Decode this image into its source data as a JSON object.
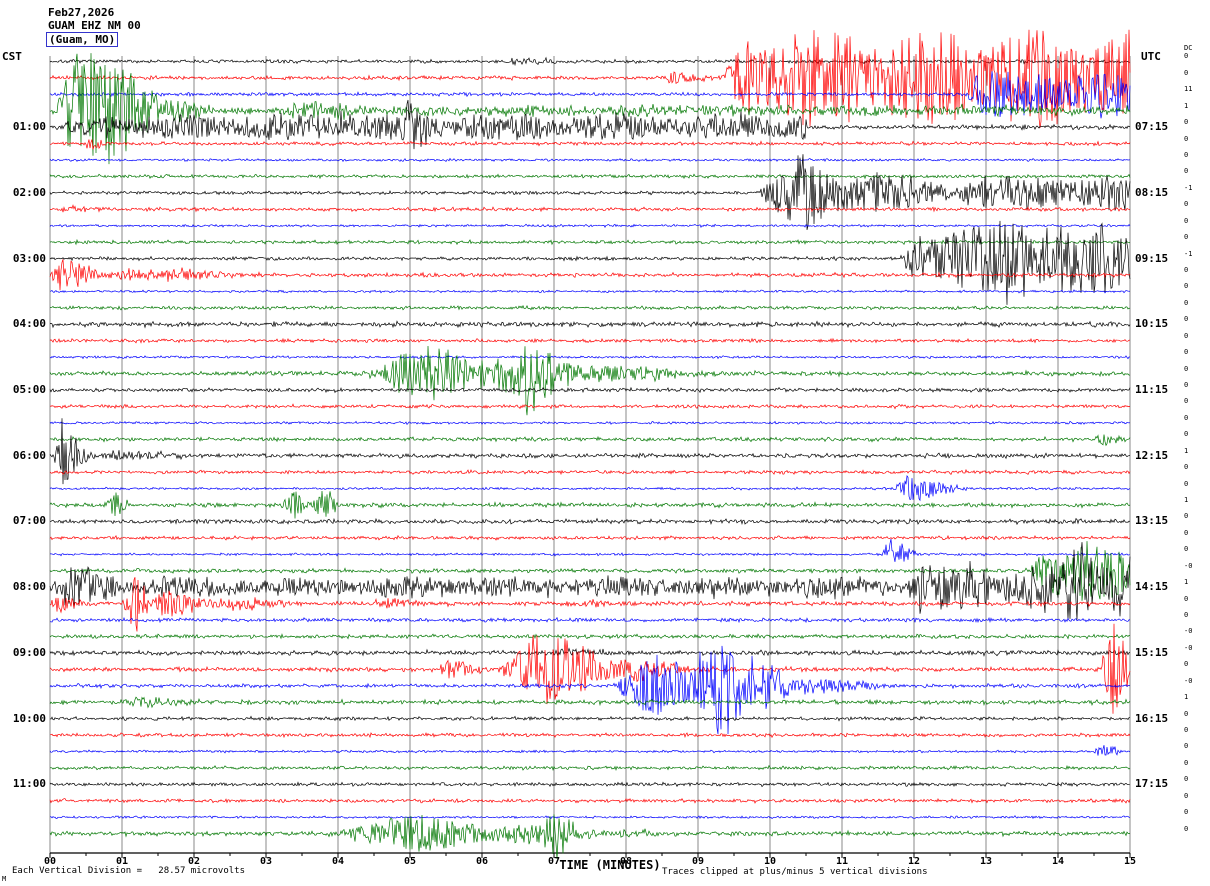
{
  "header": {
    "date": "Feb27,2026",
    "station": "GUAM EHZ NM 00",
    "location": "(Guam, MO)"
  },
  "axes": {
    "left_label": "CST",
    "right_label": "UTC",
    "dc_label": "DC",
    "x_axis_label": "TIME (MINUTES)",
    "left_times": [
      "01:00",
      "02:00",
      "03:00",
      "04:00",
      "05:00",
      "06:00",
      "07:00",
      "08:00",
      "09:00",
      "10:00",
      "11:00"
    ],
    "right_times": [
      "07:15",
      "08:15",
      "09:15",
      "10:15",
      "11:15",
      "12:15",
      "13:15",
      "14:15",
      "15:15",
      "16:15",
      "17:15"
    ],
    "x_ticks": [
      "00",
      "01",
      "02",
      "03",
      "04",
      "05",
      "06",
      "07",
      "08",
      "09",
      "10",
      "11",
      "12",
      "13",
      "14",
      "15"
    ]
  },
  "footer": {
    "scale_note": "Each Vertical Division =   28.57 microvolts",
    "clip_note": "Traces clipped at plus/minus 5 vertical divisions",
    "corner_mark": "M"
  },
  "colors": {
    "k": "#000000",
    "r": "#ff0000",
    "b": "#0000ff",
    "g": "#007700",
    "grid": "#8a8a8a",
    "axis": "#000000",
    "box": "#3333cc"
  },
  "chart_data": {
    "type": "line",
    "title": "Helicorder seismogram GUAM EHZ NM 00 (Guam, MO) Feb27,2026",
    "xlabel": "TIME (MINUTES)",
    "x_range": [
      0,
      15
    ],
    "minutes_per_line": 15,
    "lines_per_hour": 4,
    "color_cycle": [
      "black",
      "red",
      "blue",
      "green"
    ],
    "shape_codes": {
      "0": "burst",
      "1": "steady",
      "2": "spike"
    },
    "amp_units": "pixels (trace deflection, clipped at plus/minus 5 vertical divisions)",
    "traces": [
      {
        "t": "00:00",
        "c": "k",
        "dc": "0",
        "base": 0.8,
        "ev": [
          [
            6.3,
            7.6,
            3,
            0
          ]
        ]
      },
      {
        "t": "00:15",
        "c": "r",
        "dc": "0",
        "base": 0.9,
        "ev": [
          [
            8.5,
            9.3,
            6,
            0
          ],
          [
            9.3,
            15,
            34,
            1
          ]
        ]
      },
      {
        "t": "00:30",
        "c": "b",
        "dc": "11",
        "base": 0.8,
        "ev": [
          [
            12.7,
            15,
            16,
            1
          ]
        ]
      },
      {
        "t": "00:45",
        "c": "g",
        "dc": "1",
        "base": 1.4,
        "ev": [
          [
            0,
            2.4,
            50,
            0
          ],
          [
            2.4,
            15,
            3,
            1
          ],
          [
            3.2,
            4.6,
            7,
            0
          ]
        ]
      },
      {
        "t": "01:00",
        "c": "k",
        "dc": "0",
        "base": 1.0,
        "ev": [
          [
            0,
            10.5,
            9,
            1
          ],
          [
            3.9,
            4.4,
            16,
            0
          ],
          [
            4.9,
            5.4,
            14,
            0
          ],
          [
            9.5,
            10.5,
            4,
            0
          ]
        ]
      },
      {
        "t": "01:15",
        "c": "r",
        "dc": "0",
        "base": 0.8,
        "ev": [
          [
            0.45,
            0.75,
            9,
            2
          ]
        ]
      },
      {
        "t": "01:30",
        "c": "b",
        "dc": "0",
        "base": 0.55,
        "ev": []
      },
      {
        "t": "01:45",
        "c": "g",
        "dc": "0",
        "base": 0.8,
        "ev": []
      },
      {
        "t": "02:00",
        "c": "k",
        "dc": "-1",
        "base": 0.8,
        "ev": [
          [
            9.8,
            13.5,
            28,
            0
          ],
          [
            12.5,
            15,
            12,
            1
          ]
        ]
      },
      {
        "t": "02:15",
        "c": "r",
        "dc": "0",
        "base": 0.8,
        "ev": [
          [
            0,
            1.2,
            3,
            0
          ]
        ]
      },
      {
        "t": "02:30",
        "c": "b",
        "dc": "0",
        "base": 0.55,
        "ev": []
      },
      {
        "t": "02:45",
        "c": "g",
        "dc": "0",
        "base": 0.8,
        "ev": []
      },
      {
        "t": "03:00",
        "c": "k",
        "dc": "-1",
        "base": 0.8,
        "ev": [
          [
            11.8,
            15,
            22,
            1
          ],
          [
            13.1,
            14.9,
            26,
            0
          ]
        ]
      },
      {
        "t": "03:15",
        "c": "r",
        "dc": "0",
        "base": 0.9,
        "ev": [
          [
            0,
            0.9,
            14,
            0
          ],
          [
            0.7,
            3.6,
            6,
            0
          ]
        ]
      },
      {
        "t": "03:30",
        "c": "b",
        "dc": "0",
        "base": 0.55,
        "ev": []
      },
      {
        "t": "03:45",
        "c": "g",
        "dc": "0",
        "base": 0.8,
        "ev": []
      },
      {
        "t": "04:00",
        "c": "k",
        "dc": "0",
        "base": 1.1,
        "ev": []
      },
      {
        "t": "04:15",
        "c": "r",
        "dc": "0",
        "base": 0.8,
        "ev": []
      },
      {
        "t": "04:30",
        "c": "b",
        "dc": "0",
        "base": 0.55,
        "ev": []
      },
      {
        "t": "04:45",
        "c": "g",
        "dc": "0",
        "base": 1.0,
        "ev": [
          [
            4.3,
            9.8,
            20,
            0
          ],
          [
            6.4,
            7.4,
            24,
            0
          ]
        ]
      },
      {
        "t": "05:00",
        "c": "k",
        "dc": "0",
        "base": 0.9,
        "ev": []
      },
      {
        "t": "05:15",
        "c": "r",
        "dc": "0",
        "base": 0.8,
        "ev": []
      },
      {
        "t": "05:30",
        "c": "b",
        "dc": "0",
        "base": 0.55,
        "ev": []
      },
      {
        "t": "05:45",
        "c": "g",
        "dc": "0",
        "base": 0.9,
        "ev": [
          [
            14.5,
            15,
            9,
            0
          ]
        ]
      },
      {
        "t": "06:00",
        "c": "k",
        "dc": "1",
        "base": 1.0,
        "ev": [
          [
            0.05,
            0.7,
            30,
            0
          ],
          [
            0.7,
            2.2,
            4,
            0
          ]
        ]
      },
      {
        "t": "06:15",
        "c": "r",
        "dc": "0",
        "base": 0.8,
        "ev": []
      },
      {
        "t": "06:30",
        "c": "b",
        "dc": "0",
        "base": 0.55,
        "ev": [
          [
            11.7,
            12.9,
            11,
            0
          ]
        ]
      },
      {
        "t": "06:45",
        "c": "g",
        "dc": "1",
        "base": 1.0,
        "ev": [
          [
            0.75,
            1.1,
            11,
            2
          ],
          [
            3.2,
            3.6,
            13,
            2
          ],
          [
            3.6,
            4,
            15,
            2
          ]
        ]
      },
      {
        "t": "07:00",
        "c": "k",
        "dc": "0",
        "base": 1.0,
        "ev": []
      },
      {
        "t": "07:15",
        "c": "r",
        "dc": "0",
        "base": 0.8,
        "ev": []
      },
      {
        "t": "07:30",
        "c": "b",
        "dc": "0",
        "base": 0.55,
        "ev": [
          [
            11.55,
            12.15,
            13,
            0
          ]
        ]
      },
      {
        "t": "07:45",
        "c": "g",
        "dc": "-0",
        "base": 1.0,
        "ev": [
          [
            13.6,
            15,
            20,
            1
          ]
        ]
      },
      {
        "t": "08:00",
        "c": "k",
        "dc": "1",
        "base": 1.8,
        "ev": [
          [
            0,
            15,
            6,
            1
          ],
          [
            0,
            1.6,
            16,
            0
          ],
          [
            11.8,
            15,
            14,
            1
          ],
          [
            14.1,
            15,
            20,
            1
          ]
        ]
      },
      {
        "t": "08:15",
        "c": "r",
        "dc": "0",
        "base": 1.0,
        "ev": [
          [
            0,
            0.6,
            7,
            0
          ],
          [
            1.0,
            1.4,
            24,
            2
          ],
          [
            1.2,
            3.9,
            9,
            0
          ],
          [
            4.4,
            6.2,
            4,
            0
          ],
          [
            7.4,
            8.1,
            3,
            0
          ]
        ]
      },
      {
        "t": "08:30",
        "c": "b",
        "dc": "0",
        "base": 0.9,
        "ev": []
      },
      {
        "t": "08:45",
        "c": "g",
        "dc": "-0",
        "base": 0.9,
        "ev": []
      },
      {
        "t": "09:00",
        "c": "k",
        "dc": "-0",
        "base": 1.1,
        "ev": [
          [
            6.8,
            8.3,
            3,
            0
          ]
        ]
      },
      {
        "t": "09:15",
        "c": "r",
        "dc": "0",
        "base": 1.0,
        "ev": [
          [
            5.4,
            6.3,
            8,
            0
          ],
          [
            6.2,
            9.4,
            26,
            0
          ],
          [
            14.6,
            15,
            38,
            2
          ]
        ]
      },
      {
        "t": "09:30",
        "c": "b",
        "dc": "-0",
        "base": 0.9,
        "ev": [
          [
            7.8,
            12,
            24,
            0
          ],
          [
            8.9,
            10.6,
            30,
            0
          ]
        ]
      },
      {
        "t": "09:45",
        "c": "g",
        "dc": "1",
        "base": 1.0,
        "ev": [
          [
            0.9,
            2.3,
            5,
            0
          ]
        ]
      },
      {
        "t": "10:00",
        "c": "k",
        "dc": "0",
        "base": 0.8,
        "ev": []
      },
      {
        "t": "10:15",
        "c": "r",
        "dc": "0",
        "base": 0.8,
        "ev": []
      },
      {
        "t": "10:30",
        "c": "b",
        "dc": "0",
        "base": 0.55,
        "ev": [
          [
            14.5,
            14.85,
            8,
            2
          ]
        ]
      },
      {
        "t": "10:45",
        "c": "g",
        "dc": "0",
        "base": 0.8,
        "ev": []
      },
      {
        "t": "11:00",
        "c": "k",
        "dc": "0",
        "base": 0.8,
        "ev": []
      },
      {
        "t": "11:15",
        "c": "r",
        "dc": "0",
        "base": 0.8,
        "ev": []
      },
      {
        "t": "11:30",
        "c": "b",
        "dc": "0",
        "base": 0.55,
        "ev": []
      },
      {
        "t": "11:45",
        "c": "g",
        "dc": "0",
        "base": 1.0,
        "ev": [
          [
            3.9,
            9.2,
            14,
            0
          ],
          [
            6.8,
            7.7,
            18,
            0
          ]
        ]
      }
    ]
  }
}
